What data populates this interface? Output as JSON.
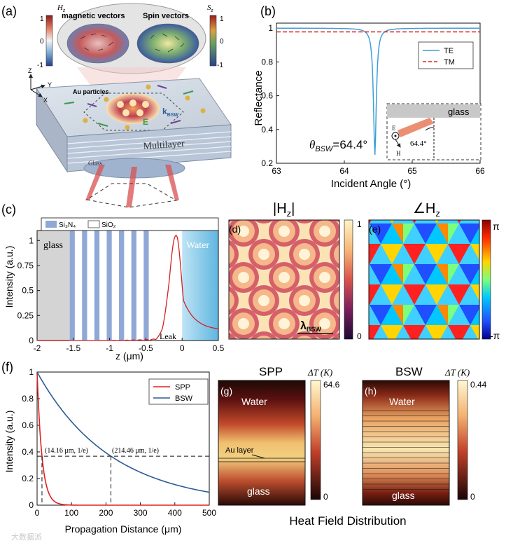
{
  "panel_labels": {
    "a": "(a)",
    "b": "(b)",
    "c": "(c)",
    "d": "(d)",
    "e": "(e)",
    "f": "(f)",
    "g": "(g)",
    "h": "(h)"
  },
  "panel_a": {
    "hz_label": "H",
    "hz_sub": "z",
    "sz_label": "S",
    "sz_sub": "z",
    "magnetic_label": "magnetic vectors",
    "spin_label": "Spin vectors",
    "cbar_max": "1",
    "cbar_mid": "0",
    "cbar_min": "-1",
    "au_particles": "Au particles",
    "multilayer": "Multilayer",
    "glass": "Glass",
    "axis_z": "Z",
    "axis_y": "Y",
    "axis_x": "X",
    "e_label": "E",
    "k_label": "k",
    "k_sub": "BSW",
    "colors": {
      "red": "#c0392b",
      "blue": "#2f5d9e",
      "green": "#3a9a4a"
    }
  },
  "panel_c_legend": {
    "si3n4": "Si₃N₄",
    "sio2": "SiO₂"
  },
  "panel_c_labels": {
    "glass": "glass",
    "water": "Water",
    "leak": "Leak"
  },
  "panel_d": {
    "title": "|H",
    "title_sub": "z",
    "title_end": "|",
    "cbar_max": "1",
    "cbar_min": "0",
    "lambda_label": "λ",
    "lambda_sub": "BSW"
  },
  "panel_e": {
    "title": "∠H",
    "title_sub": "z",
    "cbar_max": "π",
    "cbar_min": "-π"
  },
  "panel_g": {
    "title": "SPP",
    "dt_label": "ΔT (K)",
    "water": "Water",
    "glass": "glass",
    "au_layer": "Au layer",
    "cbar_max": "64.6",
    "cbar_min": "0"
  },
  "panel_h": {
    "title": "BSW",
    "dt_label": "ΔT (K)",
    "water": "Water",
    "glass": "glass",
    "cbar_max": "0.44",
    "cbar_min": "0"
  },
  "heat_caption": "Heat Field Distribution",
  "watermark": "大数据派",
  "chart_data": [
    {
      "id": "b",
      "type": "line",
      "xlabel": "Incident Angle (°)",
      "ylabel": "Reflectance",
      "xlim": [
        63,
        66
      ],
      "ylim": [
        0.2,
        1.03
      ],
      "xticks": [
        63,
        64,
        65,
        66
      ],
      "yticks": [
        0.2,
        0.4,
        0.6,
        0.8,
        1
      ],
      "series": [
        {
          "name": "TE",
          "color": "#3d9fd6",
          "style": "solid",
          "min_x": 64.45,
          "min_y": 0.25,
          "baseline": 1.0
        },
        {
          "name": "TM",
          "color": "#e02020",
          "style": "dashed",
          "baseline": 0.978
        }
      ],
      "annotation": {
        "symbol": "θ",
        "sub": "BSW",
        "value": "=64.4°"
      },
      "inset": {
        "glass": "glass",
        "angle": "64.4°",
        "e": "E",
        "h": "H"
      }
    },
    {
      "id": "c",
      "type": "line",
      "xlabel": "z (μm)",
      "ylabel": "Intensity (a.u.)",
      "xlim": [
        -2,
        0.5
      ],
      "ylim": [
        0,
        1.1
      ],
      "xticks": [
        -2,
        -1.5,
        -1,
        -0.5,
        0,
        0.5
      ],
      "yticks": [
        0,
        0.25,
        0.5,
        0.75,
        1
      ],
      "layers_si3n4": [
        [
          -1.55,
          -1.48
        ],
        [
          -1.38,
          -1.31
        ],
        [
          -1.21,
          -1.14
        ],
        [
          -1.04,
          -0.97
        ],
        [
          -0.87,
          -0.8
        ],
        [
          -0.7,
          -0.63
        ],
        [
          -0.53,
          -0.46
        ]
      ],
      "glass_region": [
        -2,
        -1.55
      ],
      "water_region": [
        0,
        0.5
      ],
      "peak_z": -0.08,
      "peak_value": 1.05,
      "decay_at_0_5": 0.1
    },
    {
      "id": "f",
      "type": "line",
      "xlabel": "Propagation Distance (μm)",
      "ylabel": "Intensity (a.u.)",
      "xlim": [
        0,
        500
      ],
      "ylim": [
        0,
        1
      ],
      "xticks": [
        0,
        100,
        200,
        300,
        400,
        500
      ],
      "yticks": [
        0,
        0.2,
        0.4,
        0.6,
        0.8,
        1
      ],
      "series": [
        {
          "name": "SPP",
          "color": "#e02020",
          "decay_length": 14.16
        },
        {
          "name": "BSW",
          "color": "#2d5b94",
          "decay_length": 214.46
        }
      ],
      "annotations": [
        {
          "x": 14.16,
          "y": 0.3679,
          "label": "(14.16 μm, 1/e)"
        },
        {
          "x": 214.46,
          "y": 0.3679,
          "label": "(214.46 μm, 1/e)"
        }
      ]
    }
  ]
}
